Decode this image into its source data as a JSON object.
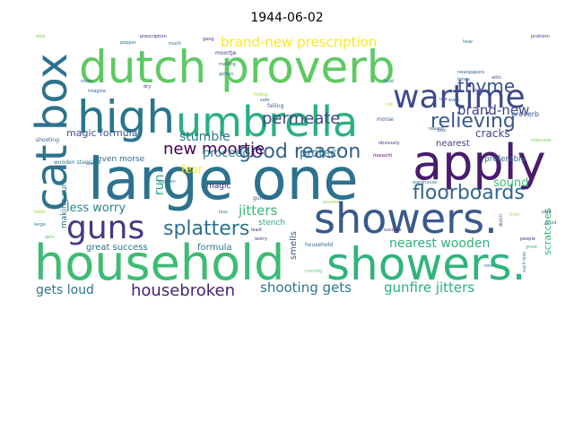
{
  "chart_data": {
    "type": "wordcloud",
    "title": "1944-06-02",
    "background": "#ffffff",
    "words": [
      {
        "text": "large one",
        "weight": 100,
        "color": "#2c728e"
      },
      {
        "text": "household",
        "weight": 78,
        "color": "#3dbc74"
      },
      {
        "text": "showers.",
        "weight": 76,
        "color": "#38598c"
      },
      {
        "text": "showers.",
        "weight": 70,
        "color": "#2fb47c"
      },
      {
        "text": "apply",
        "weight": 66,
        "color": "#481c6e"
      },
      {
        "text": "dutch proverb",
        "weight": 64,
        "color": "#5ec962"
      },
      {
        "text": "umbrella",
        "weight": 58,
        "color": "#2ab07f"
      },
      {
        "text": "high",
        "weight": 56,
        "color": "#2b748e"
      },
      {
        "text": "cat box",
        "weight": 52,
        "color": "#2c728e"
      },
      {
        "text": "wartime",
        "weight": 44,
        "color": "#3e4989"
      },
      {
        "text": "guns",
        "weight": 42,
        "color": "#443983"
      },
      {
        "text": "relieving",
        "weight": 28,
        "color": "#38588c"
      },
      {
        "text": "floorboards",
        "weight": 26,
        "color": "#31668e"
      },
      {
        "text": "splatters",
        "weight": 24,
        "color": "#2e6f8e"
      },
      {
        "text": "good reason",
        "weight": 24,
        "color": "#355f8d"
      },
      {
        "text": "new moortje",
        "weight": 22,
        "color": "#440154"
      },
      {
        "text": "thyme",
        "weight": 22,
        "color": "#3b528b"
      },
      {
        "text": "permeate",
        "weight": 20,
        "color": "#3e4a89"
      },
      {
        "text": "housebroken",
        "weight": 18,
        "color": "#482374"
      },
      {
        "text": "brand-new prescription",
        "weight": 18,
        "color": "#fde725"
      },
      {
        "text": "brand-new",
        "weight": 17,
        "color": "#404387"
      },
      {
        "text": "gunfire jitters",
        "weight": 16,
        "color": "#29af7f"
      },
      {
        "text": "shooting gets",
        "weight": 16,
        "color": "#2a788e"
      },
      {
        "text": "jitters",
        "weight": 16,
        "color": "#3aba76"
      },
      {
        "text": "nearest wooden",
        "weight": 15,
        "color": "#2db27d"
      },
      {
        "text": "gets loud",
        "weight": 15,
        "color": "#2a788e"
      },
      {
        "text": "stumble",
        "weight": 14,
        "color": "#287c8e"
      },
      {
        "text": "proceed",
        "weight": 14,
        "color": "#26828e"
      },
      {
        "text": "protect",
        "weight": 14,
        "color": "#2a778e"
      },
      {
        "text": "less worry",
        "weight": 14,
        "color": "#25848e"
      },
      {
        "text": "magic formula",
        "weight": 12,
        "color": "#3b528b"
      },
      {
        "text": "run",
        "weight": 16,
        "color": "#22a884"
      },
      {
        "text": "sound",
        "weight": 13,
        "color": "#3dbc74"
      },
      {
        "text": "cracks",
        "weight": 12,
        "color": "#404588"
      },
      {
        "text": "nearest",
        "weight": 10,
        "color": "#433e85"
      },
      {
        "text": "great success",
        "weight": 11,
        "color": "#2d708e"
      },
      {
        "text": "formula",
        "weight": 11,
        "color": "#2c738e"
      },
      {
        "text": "fear",
        "weight": 12,
        "color": "#fde725"
      },
      {
        "text": "making sure",
        "weight": 10,
        "color": "#2c728e"
      },
      {
        "text": "smells",
        "weight": 10,
        "color": "#3b528b"
      },
      {
        "text": "even morse",
        "weight": 9,
        "color": "#31688e"
      },
      {
        "text": "magic",
        "weight": 9,
        "color": "#453781"
      },
      {
        "text": "scratches",
        "weight": 11,
        "color": "#35b779"
      },
      {
        "text": "stench",
        "weight": 8,
        "color": "#29af7f"
      },
      {
        "text": "gunfire",
        "weight": 6,
        "color": "#39568c"
      },
      {
        "text": "household",
        "weight": 6,
        "color": "#33638d"
      },
      {
        "text": "wooden staircase",
        "weight": 6,
        "color": "#2a788e"
      },
      {
        "text": "preferably",
        "weight": 9,
        "color": "#31688e"
      },
      {
        "text": "moortje",
        "weight": 6,
        "color": "#46327e"
      },
      {
        "text": "proverb",
        "weight": 8,
        "color": "#3b528b"
      },
      {
        "text": "shooting",
        "weight": 6,
        "color": "#33638d"
      },
      {
        "text": "falling",
        "weight": 6,
        "color": "#38598c"
      },
      {
        "text": "safe",
        "weight": 5,
        "color": "#2c728e"
      },
      {
        "text": "hiding",
        "weight": 5,
        "color": "#a5db36"
      },
      {
        "text": "morse",
        "weight": 6,
        "color": "#38598c"
      },
      {
        "text": "obviously",
        "weight": 5,
        "color": "#453781"
      },
      {
        "text": "staircase",
        "weight": 5,
        "color": "#7ad151"
      },
      {
        "text": "warehouse",
        "weight": 5,
        "color": "#26828e"
      },
      {
        "text": "success",
        "weight": 5,
        "color": "#482878"
      },
      {
        "text": "prescription",
        "weight": 5,
        "color": "#46327e"
      },
      {
        "text": "pepper",
        "weight": 5,
        "color": "#2c728e"
      },
      {
        "text": "much",
        "weight": 5,
        "color": "#31688e"
      },
      {
        "text": "problem",
        "weight": 5,
        "color": "#404588"
      },
      {
        "text": "able",
        "weight": 5,
        "color": "#7ad151"
      },
      {
        "text": "gotten",
        "weight": 5,
        "color": "#2c728e"
      },
      {
        "text": "making",
        "weight": 5,
        "color": "#2c728e"
      },
      {
        "text": "imagine",
        "weight": 5,
        "color": "#33638d"
      },
      {
        "text": "dry",
        "weight": 5,
        "color": "#46327e"
      },
      {
        "text": "noise",
        "weight": 5,
        "color": "#31688e"
      },
      {
        "text": "loud",
        "weight": 5,
        "color": "#2c728e"
      },
      {
        "text": "even",
        "weight": 5,
        "color": "#31688e"
      },
      {
        "text": "put",
        "weight": 5,
        "color": "#46327e"
      },
      {
        "text": "attic",
        "weight": 5,
        "color": "#3b528b"
      },
      {
        "text": "newspapers",
        "weight": 5,
        "color": "#33638d"
      },
      {
        "text": "times",
        "weight": 5,
        "color": "#31688e"
      },
      {
        "text": "wooden",
        "weight": 5,
        "color": "#2c728e"
      },
      {
        "text": "anyone",
        "weight": 5,
        "color": "#7ad151"
      },
      {
        "text": "least",
        "weight": 5,
        "color": "#46327e"
      },
      {
        "text": "running",
        "weight": 5,
        "color": "#5ec962"
      },
      {
        "text": "worry",
        "weight": 5,
        "color": "#46327e"
      },
      {
        "text": "less",
        "weight": 5,
        "color": "#2c728e"
      },
      {
        "text": "also",
        "weight": 5,
        "color": "#2c728e"
      },
      {
        "text": "habit",
        "weight": 5,
        "color": "#a5db36"
      },
      {
        "text": "large",
        "weight": 5,
        "color": "#2a788e"
      },
      {
        "text": "gets",
        "weight": 5,
        "color": "#5ec962"
      },
      {
        "text": "people",
        "weight": 5,
        "color": "#46327e"
      },
      {
        "text": "great",
        "weight": 5,
        "color": "#3dbc74"
      },
      {
        "text": "new",
        "weight": 5,
        "color": "#31688e"
      },
      {
        "text": "truly",
        "weight": 5,
        "color": "#a5db36"
      },
      {
        "text": "dutch",
        "weight": 5,
        "color": "#3b528b"
      },
      {
        "text": "sure",
        "weight": 5,
        "color": "#46327e"
      },
      {
        "text": "box",
        "weight": 5,
        "color": "#3b528b"
      },
      {
        "text": "reason",
        "weight": 5,
        "color": "#33638d"
      },
      {
        "text": "use",
        "weight": 5,
        "color": "#31688e"
      },
      {
        "text": "cat",
        "weight": 5,
        "color": "#a5db36"
      },
      {
        "text": "mouschi",
        "weight": 5,
        "color": "#440154"
      },
      {
        "text": "hear",
        "weight": 5,
        "color": "#31688e"
      },
      {
        "text": "good",
        "weight": 5,
        "color": "#26828e"
      },
      {
        "text": "such less",
        "weight": 5,
        "color": "#2c728e"
      },
      {
        "text": "gang",
        "weight": 5,
        "color": "#46327e"
      }
    ]
  }
}
